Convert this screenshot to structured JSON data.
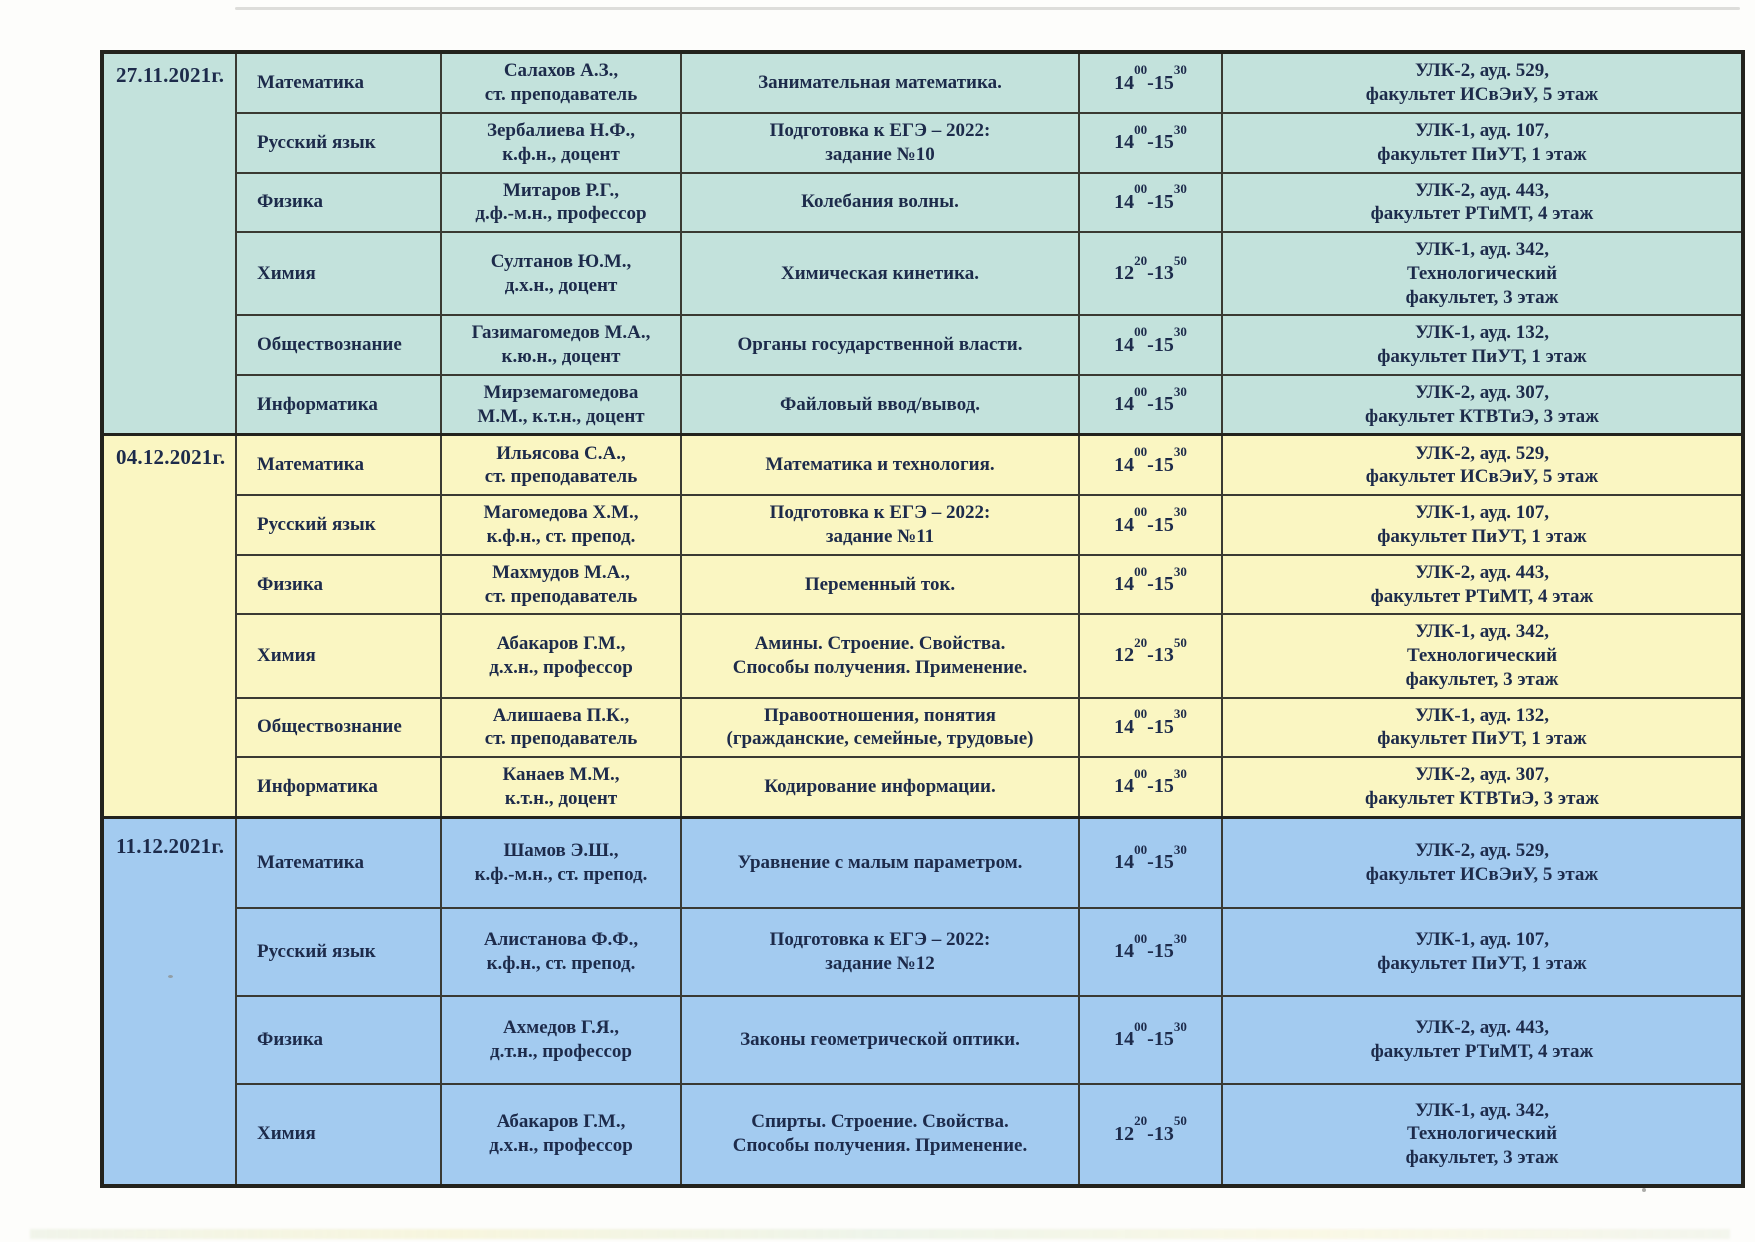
{
  "document": {
    "kind": "weekly schedule table (scanned)",
    "language": "ru",
    "text_color": "#1d2b4b",
    "border_color": "#23231d",
    "paper_color": "#fdfdfb"
  },
  "glyphs": {
    "time_separator": "-"
  },
  "sections": [
    {
      "date": "27.11.2021г.",
      "color": "#c3e2dc",
      "rows": [
        {
          "subject": "Математика",
          "teacher": [
            "Салахов А.З.,",
            "ст. преподаватель"
          ],
          "topic": [
            "Занимательная математика."
          ],
          "time": {
            "start": [
              "14",
              "00"
            ],
            "end": [
              "15",
              "30"
            ]
          },
          "location": [
            "УЛК-2, ауд. 529,",
            "факультет ИСвЭиУ, 5 этаж"
          ]
        },
        {
          "subject": "Русский язык",
          "teacher": [
            "Зербалиева Н.Ф.,",
            "к.ф.н., доцент"
          ],
          "topic": [
            "Подготовка к ЕГЭ – 2022:",
            "задание №10"
          ],
          "time": {
            "start": [
              "14",
              "00"
            ],
            "end": [
              "15",
              "30"
            ]
          },
          "location": [
            "УЛК-1, ауд. 107,",
            "факультет ПиУТ, 1 этаж"
          ]
        },
        {
          "subject": "Физика",
          "teacher": [
            "Митаров Р.Г.,",
            "д.ф.-м.н., профессор"
          ],
          "topic": [
            "Колебания волны."
          ],
          "time": {
            "start": [
              "14",
              "00"
            ],
            "end": [
              "15",
              "30"
            ]
          },
          "location": [
            "УЛК-2, ауд. 443,",
            "факультет РТиМТ, 4 этаж"
          ]
        },
        {
          "subject": "Химия",
          "teacher": [
            "Султанов Ю.М.,",
            "д.х.н., доцент"
          ],
          "topic": [
            "Химическая кинетика."
          ],
          "time": {
            "start": [
              "12",
              "20"
            ],
            "end": [
              "13",
              "50"
            ]
          },
          "location": [
            "УЛК-1, ауд. 342,",
            "Технологический",
            "факультет, 3 этаж"
          ]
        },
        {
          "subject": "Обществознание",
          "teacher": [
            "Газимагомедов М.А.,",
            "к.ю.н., доцент"
          ],
          "topic": [
            "Органы государственной власти."
          ],
          "time": {
            "start": [
              "14",
              "00"
            ],
            "end": [
              "15",
              "30"
            ]
          },
          "location": [
            "УЛК-1, ауд. 132,",
            "факультет ПиУТ, 1 этаж"
          ]
        },
        {
          "subject": "Информатика",
          "teacher": [
            "Мирземагомедова",
            "М.М., к.т.н., доцент"
          ],
          "topic": [
            "Файловый ввод/вывод."
          ],
          "time": {
            "start": [
              "14",
              "00"
            ],
            "end": [
              "15",
              "30"
            ]
          },
          "location": [
            "УЛК-2, ауд. 307,",
            "факультет КТВТиЭ, 3 этаж"
          ]
        }
      ]
    },
    {
      "date": "04.12.2021г.",
      "color": "#faf6c2",
      "rows": [
        {
          "subject": "Математика",
          "teacher": [
            "Ильясова С.А.,",
            "ст. преподаватель"
          ],
          "topic": [
            "Математика и технология."
          ],
          "time": {
            "start": [
              "14",
              "00"
            ],
            "end": [
              "15",
              "30"
            ]
          },
          "location": [
            "УЛК-2, ауд. 529,",
            "факультет ИСвЭиУ, 5 этаж"
          ]
        },
        {
          "subject": "Русский язык",
          "teacher": [
            "Магомедова Х.М.,",
            "к.ф.н., ст. препод."
          ],
          "topic": [
            "Подготовка к ЕГЭ – 2022:",
            "задание №11"
          ],
          "time": {
            "start": [
              "14",
              "00"
            ],
            "end": [
              "15",
              "30"
            ]
          },
          "location": [
            "УЛК-1, ауд. 107,",
            "факультет ПиУТ, 1 этаж"
          ]
        },
        {
          "subject": "Физика",
          "teacher": [
            "Махмудов М.А.,",
            "ст. преподаватель"
          ],
          "topic": [
            "Переменный ток."
          ],
          "time": {
            "start": [
              "14",
              "00"
            ],
            "end": [
              "15",
              "30"
            ]
          },
          "location": [
            "УЛК-2, ауд. 443,",
            "факультет РТиМТ, 4 этаж"
          ]
        },
        {
          "subject": "Химия",
          "teacher": [
            "Абакаров Г.М.,",
            "д.х.н., профессор"
          ],
          "topic": [
            "Амины. Строение. Свойства.",
            "Способы получения. Применение."
          ],
          "time": {
            "start": [
              "12",
              "20"
            ],
            "end": [
              "13",
              "50"
            ]
          },
          "location": [
            "УЛК-1, ауд. 342,",
            "Технологический",
            "факультет, 3 этаж"
          ]
        },
        {
          "subject": "Обществознание",
          "teacher": [
            "Алишаева П.К.,",
            "ст. преподаватель"
          ],
          "topic": [
            "Правоотношения, понятия",
            "(гражданские, семейные, трудовые)"
          ],
          "time": {
            "start": [
              "14",
              "00"
            ],
            "end": [
              "15",
              "30"
            ]
          },
          "location": [
            "УЛК-1, ауд. 132,",
            "факультет ПиУТ, 1 этаж"
          ]
        },
        {
          "subject": "Информатика",
          "teacher": [
            "Канаев М.М.,",
            "к.т.н., доцент"
          ],
          "topic": [
            "Кодирование информации."
          ],
          "time": {
            "start": [
              "14",
              "00"
            ],
            "end": [
              "15",
              "30"
            ]
          },
          "location": [
            "УЛК-2, ауд. 307,",
            "факультет КТВТиЭ, 3 этаж"
          ]
        }
      ]
    },
    {
      "date": "11.12.2021г.",
      "color": "#a3cbf0",
      "rows": [
        {
          "subject": "Математика",
          "teacher": [
            "Шамов Э.Ш.,",
            "к.ф.-м.н., ст. препод."
          ],
          "topic": [
            "Уравнение с малым параметром."
          ],
          "time": {
            "start": [
              "14",
              "00"
            ],
            "end": [
              "15",
              "30"
            ]
          },
          "location": [
            "УЛК-2, ауд. 529,",
            "факультет ИСвЭиУ, 5 этаж"
          ]
        },
        {
          "subject": "Русский язык",
          "teacher": [
            "Алистанова Ф.Ф.,",
            "к.ф.н., ст. препод."
          ],
          "topic": [
            "Подготовка к ЕГЭ – 2022:",
            "задание №12"
          ],
          "time": {
            "start": [
              "14",
              "00"
            ],
            "end": [
              "15",
              "30"
            ]
          },
          "location": [
            "УЛК-1, ауд. 107,",
            "факультет ПиУТ, 1 этаж"
          ]
        },
        {
          "subject": "Физика",
          "teacher": [
            "Ахмедов Г.Я.,",
            "д.т.н., профессор"
          ],
          "topic": [
            "Законы геометрической оптики."
          ],
          "time": {
            "start": [
              "14",
              "00"
            ],
            "end": [
              "15",
              "30"
            ]
          },
          "location": [
            "УЛК-2, ауд. 443,",
            "факультет РТиМТ, 4 этаж"
          ]
        },
        {
          "subject": "Химия",
          "teacher": [
            "Абакаров Г.М.,",
            "д.х.н., профессор"
          ],
          "topic": [
            "Спирты. Строение. Свойства.",
            "Способы получения. Применение."
          ],
          "time": {
            "start": [
              "12",
              "20"
            ],
            "end": [
              "13",
              "50"
            ]
          },
          "location": [
            "УЛК-1, ауд. 342,",
            "Технологический",
            "факультет, 3 этаж"
          ]
        }
      ]
    }
  ]
}
